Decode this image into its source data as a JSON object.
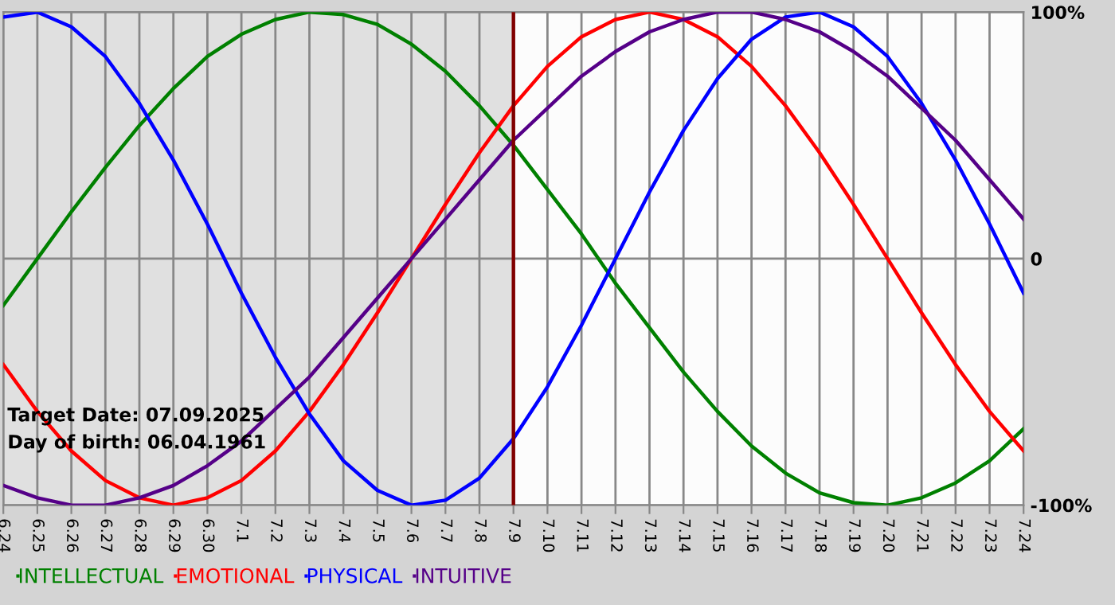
{
  "chart_data": {
    "type": "line",
    "categories": [
      "6.24",
      "6.25",
      "6.26",
      "6.27",
      "6.28",
      "6.29",
      "6.30",
      "7.1",
      "7.2",
      "7.3",
      "7.4",
      "7.5",
      "7.6",
      "7.7",
      "7.8",
      "7.9",
      "7.10",
      "7.11",
      "7.12",
      "7.13",
      "7.14",
      "7.15",
      "7.16",
      "7.17",
      "7.18",
      "7.19",
      "7.20",
      "7.21",
      "7.22",
      "7.23",
      "7.24"
    ],
    "series": [
      {
        "name": "INTELLECTUAL",
        "color": "#008000",
        "values": [
          -19,
          0,
          19,
          37,
          54,
          69,
          82,
          91,
          97,
          100,
          99,
          95,
          87,
          76,
          62,
          46,
          28,
          10,
          -10,
          -28,
          -46,
          -62,
          -76,
          -87,
          -95,
          -99,
          -100,
          -97,
          -91,
          -82,
          -69
        ]
      },
      {
        "name": "EMOTIONAL",
        "color": "#ff0000",
        "values": [
          -43,
          -62,
          -78,
          -90,
          -97,
          -100,
          -97,
          -90,
          -78,
          -62,
          -43,
          -22,
          0,
          22,
          43,
          62,
          78,
          90,
          97,
          100,
          97,
          90,
          78,
          62,
          43,
          22,
          0,
          -22,
          -43,
          -62,
          -78
        ]
      },
      {
        "name": "PHYSICAL",
        "color": "#0000ff",
        "values": [
          98,
          100,
          94,
          82,
          63,
          40,
          14,
          -14,
          -40,
          -63,
          -82,
          -94,
          -100,
          -98,
          -89,
          -73,
          -52,
          -27,
          0,
          27,
          52,
          73,
          89,
          98,
          100,
          94,
          82,
          63,
          40,
          14,
          -14
        ]
      },
      {
        "name": "INTUITIVE",
        "color": "#550088",
        "values": [
          -92,
          -97,
          -100,
          -100,
          -97,
          -92,
          -84,
          -74,
          -61,
          -48,
          -32,
          -16,
          0,
          16,
          32,
          48,
          61,
          74,
          84,
          92,
          97,
          100,
          100,
          97,
          92,
          84,
          74,
          61,
          48,
          32,
          16
        ]
      }
    ],
    "ylim": [
      -100,
      100
    ],
    "yticks": [
      {
        "value": -100,
        "label": "-100%"
      },
      0,
      {
        "value": 100,
        "label": "100%"
      }
    ],
    "grid": true,
    "legend": "bottom",
    "marker": "none",
    "line_style": "solid",
    "ref_lines": [
      {
        "axis": "x",
        "value": "7.9",
        "color": "#800000"
      }
    ],
    "bands": [
      {
        "axis": "x",
        "from": "6.24",
        "to": "7.9",
        "color": "#e0e0e0"
      }
    ],
    "annotations": [
      "Target Date: 07.09.2025",
      "Day of birth: 06.04.1961"
    ]
  }
}
